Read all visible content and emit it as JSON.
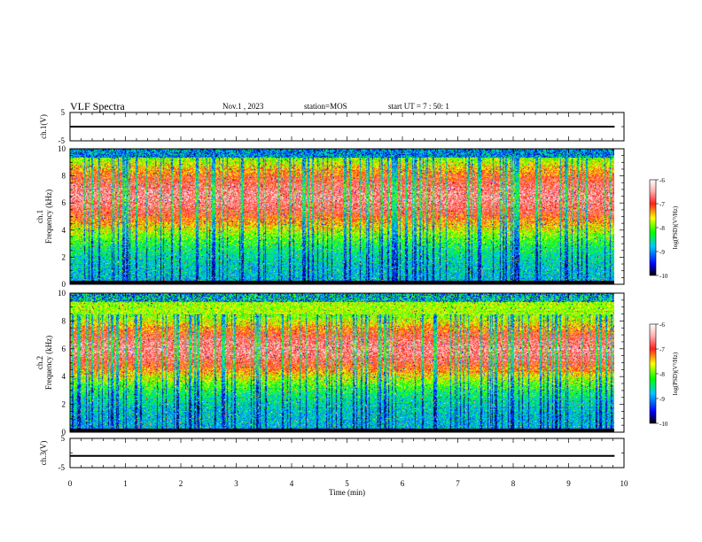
{
  "header": {
    "title": "VLF Spectra",
    "date": "Nov.1 , 2023",
    "station": "station=MOS",
    "start": "start UT = 7 : 50: 1"
  },
  "chart_data": [
    {
      "type": "line",
      "name": "ch1-waveform",
      "ylabel": "ch.1(V)",
      "ylim": [
        -5,
        5
      ],
      "yticks": [
        "5",
        "-5"
      ],
      "xlim": [
        0,
        10
      ],
      "series": [
        {
          "x": [
            0,
            9.83
          ],
          "y": [
            0,
            0
          ]
        }
      ]
    },
    {
      "type": "heatmap",
      "name": "ch1-spectrogram",
      "ylabel": "ch.1 Frequency (kHz)",
      "ylim": [
        0,
        10
      ],
      "yticks": [
        "0",
        "2",
        "4",
        "6",
        "8",
        "10"
      ],
      "xlim": [
        0,
        10
      ],
      "data_xmax": 9.83,
      "colorbar": {
        "label": "log(PSD)(V²/Hz)",
        "range": [
          -10,
          -6
        ],
        "ticks": [
          "-6",
          "-7",
          "-8",
          "-9",
          "-10"
        ]
      }
    },
    {
      "type": "heatmap",
      "name": "ch2-spectrogram",
      "ylabel": "ch.2 Frequency (kHz)",
      "ylim": [
        0,
        10
      ],
      "yticks": [
        "0",
        "2",
        "4",
        "6",
        "8",
        "10"
      ],
      "xlim": [
        0,
        10
      ],
      "data_xmax": 9.83,
      "colorbar": {
        "label": "log(PSD)(V²/Hz)",
        "range": [
          -10,
          -6
        ],
        "ticks": [
          "-6",
          "-7",
          "-8",
          "-9",
          "-10"
        ]
      }
    },
    {
      "type": "line",
      "name": "ch3-waveform",
      "ylabel": "ch.3(V)",
      "ylim": [
        -5,
        5
      ],
      "yticks": [
        "5",
        "-5"
      ],
      "xlim": [
        0,
        10
      ],
      "series": [
        {
          "x": [
            0,
            9.83
          ],
          "y": [
            -1,
            -1
          ]
        }
      ]
    }
  ],
  "xaxis": {
    "label": "Time (min)",
    "ticks": [
      "0",
      "1",
      "2",
      "3",
      "4",
      "5",
      "6",
      "7",
      "8",
      "9",
      "10"
    ]
  }
}
